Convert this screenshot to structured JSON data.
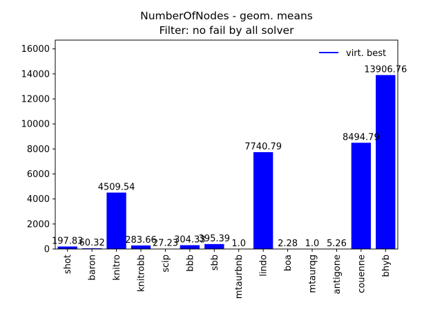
{
  "chart_data": {
    "type": "bar",
    "title": "NumberOfNodes - geom. means",
    "subtitle": "Filter: no fail by all solver",
    "xlabel": "",
    "ylabel": "",
    "ylim": [
      0,
      16700
    ],
    "yticks": [
      0,
      2000,
      4000,
      6000,
      8000,
      10000,
      12000,
      14000,
      16000
    ],
    "ytick_labels": [
      "0",
      "2000",
      "4000",
      "6000",
      "8000",
      "10000",
      "12000",
      "14000",
      "16000"
    ],
    "categories": [
      "shot",
      "baron",
      "knitro",
      "knitrobb",
      "scip",
      "bbb",
      "sbb",
      "mtaurbnb",
      "lindo",
      "boa",
      "mtaurqg",
      "antigone",
      "couenne",
      "bhyb"
    ],
    "values": [
      197.83,
      60.32,
      4509.54,
      283.66,
      27.23,
      304.33,
      395.39,
      1.0,
      7740.79,
      2.28,
      1.0,
      5.26,
      8494.79,
      13906.76
    ],
    "value_labels": [
      "197.83",
      "60.32",
      "4509.54",
      "283.66",
      "27.23",
      "304.33",
      "395.39",
      "1.0",
      "7740.79",
      "2.28",
      "1.0",
      "5.26",
      "8494.79",
      "13906.76"
    ],
    "bar_color": "#0000ff",
    "legend": {
      "entries": [
        "virt. best"
      ],
      "placement": "top-right",
      "color": "#0000ff"
    },
    "grid": false
  }
}
